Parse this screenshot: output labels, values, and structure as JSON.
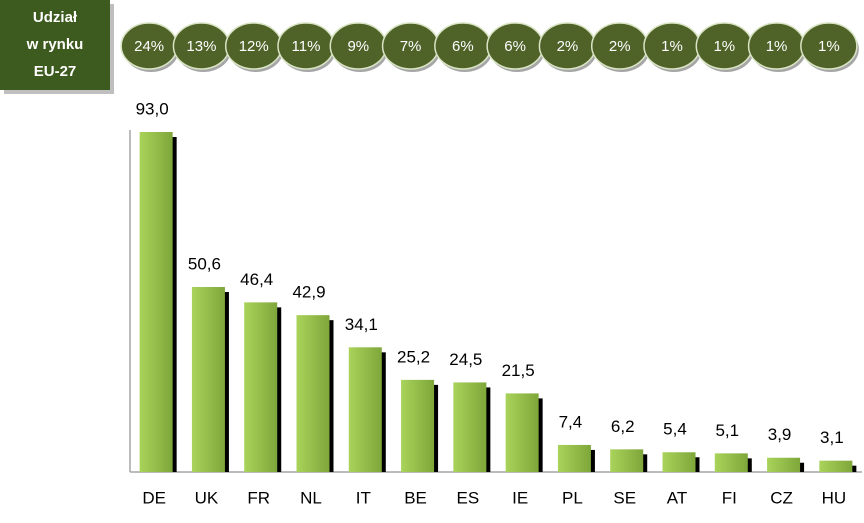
{
  "chart_data": {
    "type": "bar",
    "categories": [
      "DE",
      "UK",
      "FR",
      "NL",
      "IT",
      "BE",
      "ES",
      "IE",
      "PL",
      "SE",
      "AT",
      "FI",
      "CZ",
      "HU"
    ],
    "values": [
      93.0,
      50.6,
      46.4,
      42.9,
      34.1,
      25.2,
      24.5,
      21.5,
      7.4,
      6.2,
      5.4,
      5.1,
      3.9,
      3.1
    ],
    "value_labels": [
      "93,0",
      "50,6",
      "46,4",
      "42,9",
      "34,1",
      "25,2",
      "24,5",
      "21,5",
      "7,4",
      "6,2",
      "5,4",
      "5,1",
      "3,9",
      "3,1"
    ],
    "color": "#8fbc45",
    "ylim": [
      0,
      93
    ],
    "shares": {
      "label": [
        "Udział",
        "w rynku",
        "EU-27"
      ],
      "values": [
        24,
        13,
        12,
        11,
        9,
        7,
        6,
        6,
        2,
        2,
        1,
        1,
        1,
        1
      ],
      "value_labels": [
        "24%",
        "13%",
        "12%",
        "11%",
        "9%",
        "7%",
        "6%",
        "6%",
        "2%",
        "2%",
        "1%",
        "1%",
        "1%",
        "1%"
      ],
      "color": "#4f6228"
    }
  }
}
